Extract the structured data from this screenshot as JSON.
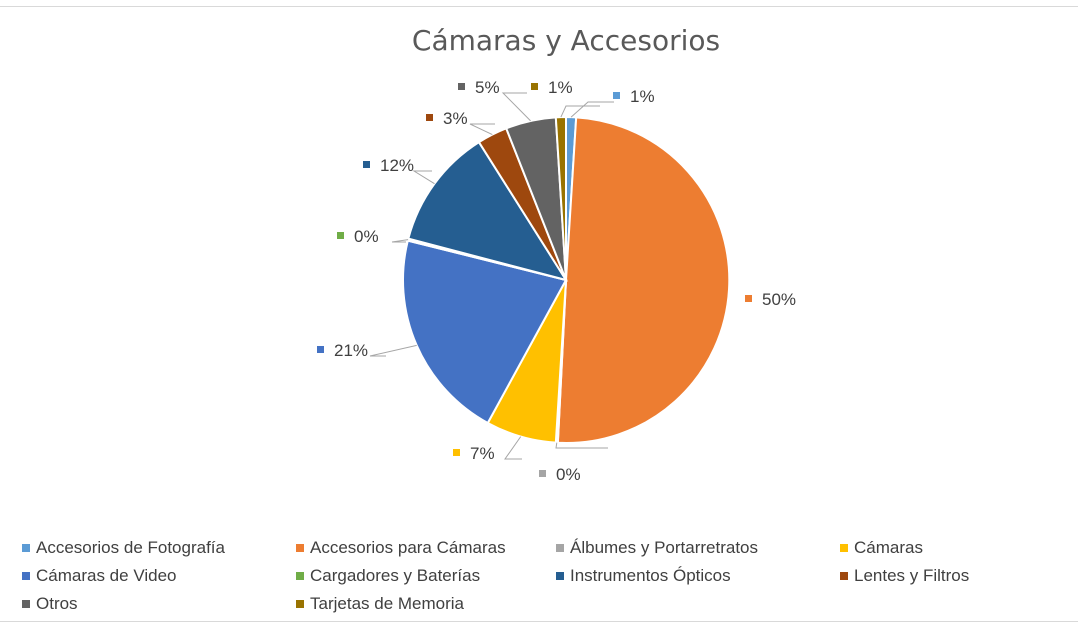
{
  "chart_data": {
    "type": "pie",
    "title": "Cámaras y Accesorios",
    "legend_position": "bottom",
    "slices": [
      {
        "name": "Accesorios de Fotografía",
        "value": 1,
        "label": "1%",
        "color": "#5b9bd5"
      },
      {
        "name": "Accesorios para Cámaras",
        "value": 50,
        "label": "50%",
        "color": "#ed7d31"
      },
      {
        "name": "Álbumes y Portarretratos",
        "value": 0.2,
        "label": "0%",
        "color": "#a5a5a5"
      },
      {
        "name": "Cámaras",
        "value": 7,
        "label": "7%",
        "color": "#ffc000"
      },
      {
        "name": "Cámaras de Video",
        "value": 21,
        "label": "21%",
        "color": "#4472c4"
      },
      {
        "name": "Cargadores y Baterías",
        "value": 0.2,
        "label": "0%",
        "color": "#70ad47"
      },
      {
        "name": "Instrumentos Ópticos",
        "value": 12,
        "label": "12%",
        "color": "#255e91"
      },
      {
        "name": "Lentes y Filtros",
        "value": 3,
        "label": "3%",
        "color": "#9e480e"
      },
      {
        "name": "Otros",
        "value": 5,
        "label": "5%",
        "color": "#636363"
      },
      {
        "name": "Tarjetas de Memoria",
        "value": 1,
        "label": "1%",
        "color": "#997300"
      }
    ]
  }
}
